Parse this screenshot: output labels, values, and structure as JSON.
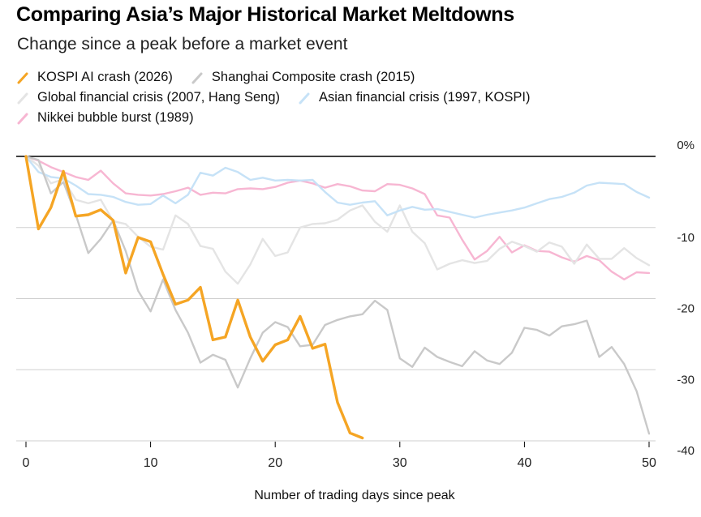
{
  "title": "Comparing Asia’s Major Historical Market Meltdowns",
  "subtitle": "Change since a peak before a market event",
  "chart_data": {
    "type": "line",
    "xlabel": "Number of trading days since peak",
    "ylabel": "",
    "xlim": [
      0,
      50
    ],
    "ylim": [
      -40,
      0
    ],
    "x_ticks": [
      0,
      10,
      20,
      30,
      40,
      50
    ],
    "y_ticks": [
      0,
      -10,
      -20,
      -30,
      -40
    ],
    "y_tick_labels": [
      "0%",
      "-10",
      "-20",
      "-30",
      "-40"
    ],
    "grid": "horizontal",
    "legend_position": "top-left",
    "series": [
      {
        "name": "Nikkei bubble burst (1989)",
        "color": "#f7b6d2",
        "values": [
          0,
          -0.6,
          -1.5,
          -2.2,
          -2.9,
          -3.3,
          -2,
          -3.8,
          -5.2,
          -5.4,
          -5.5,
          -5.3,
          -4.9,
          -4.4,
          -5.4,
          -5.1,
          -5.2,
          -4.6,
          -4.5,
          -4.6,
          -4.3,
          -3.7,
          -3.4,
          -3.8,
          -4.4,
          -3.9,
          -4.2,
          -4.8,
          -4.9,
          -3.9,
          -4,
          -4.5,
          -5.3,
          -8.3,
          -8.6,
          -11.7,
          -14.5,
          -13.3,
          -11.3,
          -13.5,
          -12.5,
          -13.3,
          -13.4,
          -14.2,
          -14.8,
          -14,
          -14.6,
          -16.2,
          -17.3,
          -16.3,
          -16.4
        ]
      },
      {
        "name": "Global financial crisis (2007, Hang Seng)",
        "color": "#e4e4e4",
        "values": [
          0,
          -1.3,
          -3.8,
          -3.2,
          -6.1,
          -6.6,
          -6.1,
          -9.1,
          -9.5,
          -11.3,
          -12.7,
          -13.1,
          -8.3,
          -9.5,
          -12.6,
          -13,
          -16.2,
          -17.9,
          -15.2,
          -11.6,
          -14,
          -13.5,
          -10,
          -9.5,
          -9.4,
          -8.9,
          -7.6,
          -6.9,
          -9.2,
          -10.6,
          -6.9,
          -10.6,
          -12.2,
          -15.9,
          -15.1,
          -14.6,
          -15,
          -14.7,
          -13,
          -12,
          -12.6,
          -13.4,
          -12.1,
          -12.7,
          -15.1,
          -12.4,
          -14.4,
          -14.4,
          -12.9,
          -14.3,
          -15.3
        ]
      },
      {
        "name": "Asian financial crisis (1997, KOSPI)",
        "color": "#c6e2f7",
        "values": [
          0,
          -2.2,
          -2.9,
          -3.1,
          -4.1,
          -5.3,
          -5.4,
          -5.7,
          -6.4,
          -6.8,
          -6.7,
          -5.5,
          -6.6,
          -5.4,
          -2.3,
          -2.7,
          -1.6,
          -2.2,
          -3.3,
          -3,
          -3.4,
          -3.3,
          -3.4,
          -3.3,
          -5,
          -6.5,
          -6.8,
          -6.5,
          -6.3,
          -8.3,
          -7.6,
          -7.1,
          -7.5,
          -7.4,
          -7.8,
          -8.2,
          -8.6,
          -8.2,
          -7.9,
          -7.6,
          -7.2,
          -6.6,
          -6,
          -5.7,
          -5.1,
          -4.1,
          -3.7,
          -3.8,
          -3.9,
          -5,
          -5.8
        ]
      },
      {
        "name": "Shanghai Composite crash (2015)",
        "color": "#c9c9c9",
        "values": [
          0,
          -0.5,
          -5.2,
          -3.6,
          -8.2,
          -13.6,
          -11.6,
          -9,
          -13.3,
          -18.9,
          -21.8,
          -17.3,
          -21.6,
          -24.8,
          -29,
          -27.9,
          -28.6,
          -32.5,
          -28.4,
          -24.8,
          -23.3,
          -24,
          -26.7,
          -26.5,
          -23.7,
          -23,
          -22.5,
          -22.2,
          -20.3,
          -21.6,
          -28.4,
          -29.6,
          -26.9,
          -28.2,
          -28.9,
          -29.5,
          -27.4,
          -28.7,
          -29.2,
          -27.6,
          -24.1,
          -24.4,
          -25.2,
          -23.9,
          -23.6,
          -23.1,
          -28.2,
          -26.8,
          -29.2,
          -33,
          -39
        ]
      },
      {
        "name": "KOSPI AI crash (2026)",
        "color": "#f5a524",
        "values": [
          0,
          -10.2,
          -7.2,
          -2.1,
          -8.4,
          -8.2,
          -7.5,
          -9,
          -16.4,
          -11.4,
          -12,
          -16.6,
          -20.8,
          -20.2,
          -18.4,
          -25.8,
          -25.4,
          -20.2,
          -25.4,
          -28.8,
          -26.5,
          -25.8,
          -22.5,
          -27,
          -26.4,
          -34.6,
          -38.9,
          -39.6
        ]
      }
    ]
  }
}
